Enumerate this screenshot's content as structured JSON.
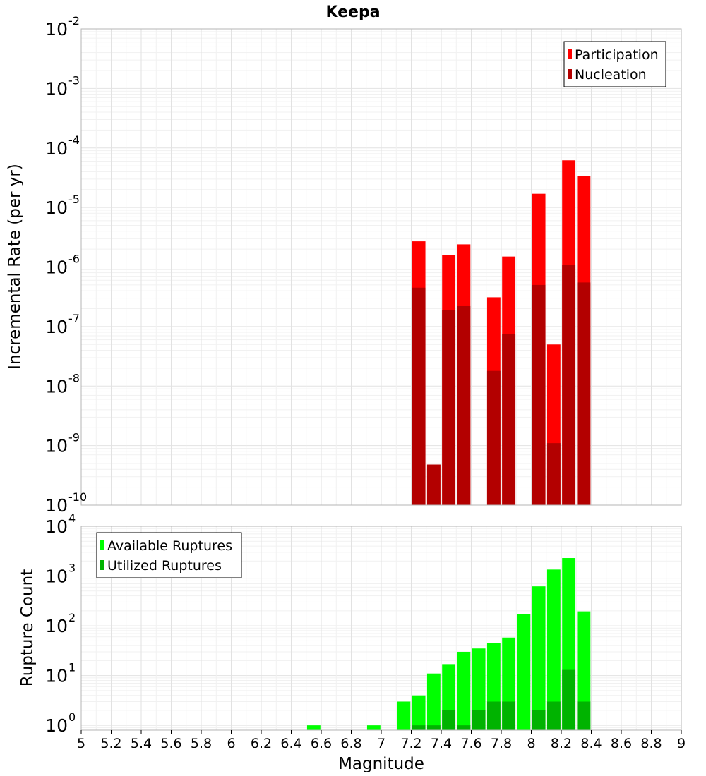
{
  "chart_data": [
    {
      "type": "bar",
      "title": "Keepa",
      "xlabel": "",
      "ylabel": "Incremental Rate (per yr)",
      "yscale": "log",
      "ylim": [
        1e-10,
        0.01
      ],
      "xlim": [
        5,
        9
      ],
      "y_tick_exponents": [
        -10,
        -9,
        -8,
        -7,
        -6,
        -5,
        -4,
        -3,
        -2
      ],
      "legend_position": "top-right",
      "grid": true,
      "bar_width": 0.1,
      "series": [
        {
          "name": "Participation",
          "color": "#ff0000",
          "x": [
            7.25,
            7.35,
            7.45,
            7.55,
            7.75,
            7.85,
            8.05,
            8.15,
            8.25,
            8.35
          ],
          "values": [
            2.7e-06,
            4.8e-10,
            1.6e-06,
            2.4e-06,
            3.1e-07,
            1.5e-06,
            1.7e-05,
            5e-08,
            6.2e-05,
            3.4e-05
          ]
        },
        {
          "name": "Nucleation",
          "color": "#b30000",
          "x": [
            7.25,
            7.35,
            7.45,
            7.55,
            7.75,
            7.85,
            8.05,
            8.15,
            8.25,
            8.35
          ],
          "values": [
            4.5e-07,
            4.8e-10,
            1.9e-07,
            2.2e-07,
            1.8e-08,
            7.5e-08,
            5e-07,
            1.1e-09,
            1.1e-06,
            5.5e-07
          ]
        }
      ]
    },
    {
      "type": "bar",
      "title": "",
      "xlabel": "Magnitude",
      "ylabel": "Rupture Count",
      "yscale": "log",
      "ylim": [
        0.8,
        10000
      ],
      "xlim": [
        5,
        9
      ],
      "y_tick_exponents": [
        0,
        1,
        2,
        3,
        4
      ],
      "x_tick_labels": [
        "5",
        "5.2",
        "5.4",
        "5.6",
        "5.8",
        "6",
        "6.2",
        "6.4",
        "6.6",
        "6.8",
        "7",
        "7.2",
        "7.4",
        "7.6",
        "7.8",
        "8",
        "8.2",
        "8.4",
        "8.6",
        "8.8",
        "9"
      ],
      "legend_position": "top-left",
      "grid": true,
      "bar_width": 0.1,
      "series": [
        {
          "name": "Available Ruptures",
          "color": "#00ff00",
          "x": [
            6.55,
            6.95,
            7.15,
            7.25,
            7.35,
            7.45,
            7.55,
            7.65,
            7.75,
            7.85,
            7.95,
            8.05,
            8.15,
            8.25,
            8.35
          ],
          "values": [
            1,
            1,
            3,
            4,
            11,
            17,
            30,
            35,
            45,
            58,
            170,
            620,
            1350,
            2300,
            195
          ]
        },
        {
          "name": "Utilized Ruptures",
          "color": "#00b300",
          "x": [
            7.25,
            7.35,
            7.45,
            7.55,
            7.65,
            7.75,
            7.85,
            8.05,
            8.15,
            8.25,
            8.35
          ],
          "values": [
            1,
            1,
            2,
            1,
            2,
            3,
            3,
            2,
            3,
            13,
            3
          ]
        }
      ]
    }
  ]
}
